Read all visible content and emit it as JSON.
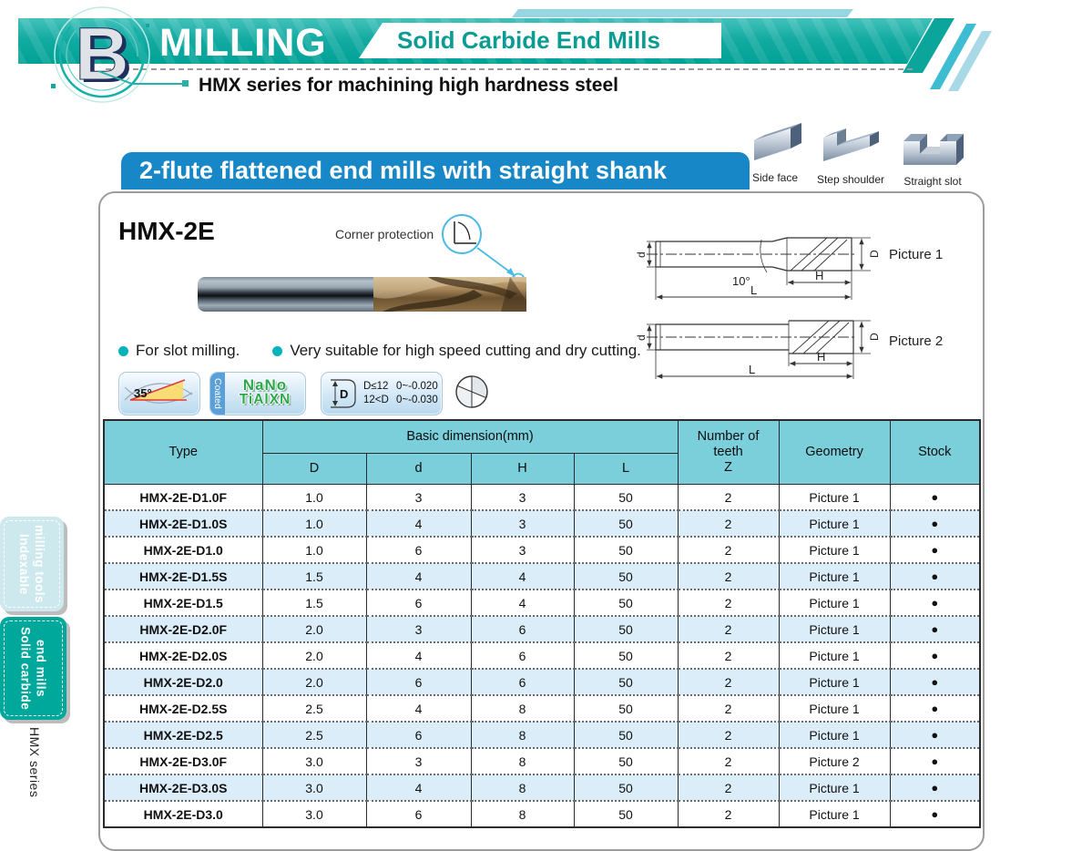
{
  "header": {
    "section_letter": "B",
    "title": "MILLING",
    "box_label": "Solid Carbide End Mills",
    "series_line": "HMX series for machining high hardness steel"
  },
  "banner": {
    "label": "2-flute flattened end mills with straight shank"
  },
  "application_icons": [
    {
      "icon": "side-face-icon",
      "label": "Side face"
    },
    {
      "icon": "step-shoulder-icon",
      "label": "Step shoulder"
    },
    {
      "icon": "straight-slot-icon",
      "label": "Straight slot"
    }
  ],
  "product": {
    "model": "HMX-2E",
    "callout_label": "Corner protection",
    "features": [
      "For slot milling.",
      "Very suitable for high speed cutting and dry cutting."
    ],
    "drawings": [
      {
        "label": "Picture 1",
        "angle": "10°"
      },
      {
        "label": "Picture 2"
      }
    ],
    "dim_labels": {
      "d": "d",
      "D": "D",
      "H": "H",
      "L": "L"
    }
  },
  "badges": {
    "helix_angle": "35°",
    "coated": "Coated",
    "coating_line1": "NaNo",
    "coating_line2": "TiAlXN",
    "tol_rows": [
      {
        "cond": "D≤12",
        "val": "0~-0.020"
      },
      {
        "cond": "12<D",
        "val": "0~-0.030"
      }
    ]
  },
  "table": {
    "col_type": "Type",
    "col_basic": "Basic dimension(mm)",
    "col_D": "D",
    "col_d": "d",
    "col_H": "H",
    "col_L": "L",
    "col_teeth": [
      "Number of",
      "teeth",
      "Z"
    ],
    "col_geometry": "Geometry",
    "col_stock": "Stock",
    "rows": [
      {
        "type": "HMX-2E-D1.0F",
        "D": "1.0",
        "d": "3",
        "H": "3",
        "L": "50",
        "Z": "2",
        "geometry": "Picture 1",
        "stock": "●"
      },
      {
        "type": "HMX-2E-D1.0S",
        "D": "1.0",
        "d": "4",
        "H": "3",
        "L": "50",
        "Z": "2",
        "geometry": "Picture 1",
        "stock": "●"
      },
      {
        "type": "HMX-2E-D1.0",
        "D": "1.0",
        "d": "6",
        "H": "3",
        "L": "50",
        "Z": "2",
        "geometry": "Picture 1",
        "stock": "●"
      },
      {
        "type": "HMX-2E-D1.5S",
        "D": "1.5",
        "d": "4",
        "H": "4",
        "L": "50",
        "Z": "2",
        "geometry": "Picture 1",
        "stock": "●"
      },
      {
        "type": "HMX-2E-D1.5",
        "D": "1.5",
        "d": "6",
        "H": "4",
        "L": "50",
        "Z": "2",
        "geometry": "Picture 1",
        "stock": "●"
      },
      {
        "type": "HMX-2E-D2.0F",
        "D": "2.0",
        "d": "3",
        "H": "6",
        "L": "50",
        "Z": "2",
        "geometry": "Picture 1",
        "stock": "●"
      },
      {
        "type": "HMX-2E-D2.0S",
        "D": "2.0",
        "d": "4",
        "H": "6",
        "L": "50",
        "Z": "2",
        "geometry": "Picture 1",
        "stock": "●"
      },
      {
        "type": "HMX-2E-D2.0",
        "D": "2.0",
        "d": "6",
        "H": "6",
        "L": "50",
        "Z": "2",
        "geometry": "Picture 1",
        "stock": "●"
      },
      {
        "type": "HMX-2E-D2.5S",
        "D": "2.5",
        "d": "4",
        "H": "8",
        "L": "50",
        "Z": "2",
        "geometry": "Picture 1",
        "stock": "●"
      },
      {
        "type": "HMX-2E-D2.5",
        "D": "2.5",
        "d": "6",
        "H": "8",
        "L": "50",
        "Z": "2",
        "geometry": "Picture 1",
        "stock": "●"
      },
      {
        "type": "HMX-2E-D3.0F",
        "D": "3.0",
        "d": "3",
        "H": "8",
        "L": "50",
        "Z": "2",
        "geometry": "Picture 2",
        "stock": "●"
      },
      {
        "type": "HMX-2E-D3.0S",
        "D": "3.0",
        "d": "4",
        "H": "8",
        "L": "50",
        "Z": "2",
        "geometry": "Picture 1",
        "stock": "●"
      },
      {
        "type": "HMX-2E-D3.0",
        "D": "3.0",
        "d": "6",
        "H": "8",
        "L": "50",
        "Z": "2",
        "geometry": "Picture 1",
        "stock": "●"
      }
    ]
  },
  "sidebar": {
    "tabs": [
      {
        "line1": "Indexable",
        "line2": "milling tools",
        "active": false
      },
      {
        "line1": "Solid carbide",
        "line2": "end mills",
        "active": true
      }
    ],
    "series_label": "HMX series"
  },
  "colors": {
    "teal": "#00a79b",
    "teal_light": "#96d6e3",
    "blue_banner": "#1787c8",
    "table_header": "#7acfdb",
    "row_alt": "#daedf9",
    "coating_green": "#2ea84c"
  }
}
